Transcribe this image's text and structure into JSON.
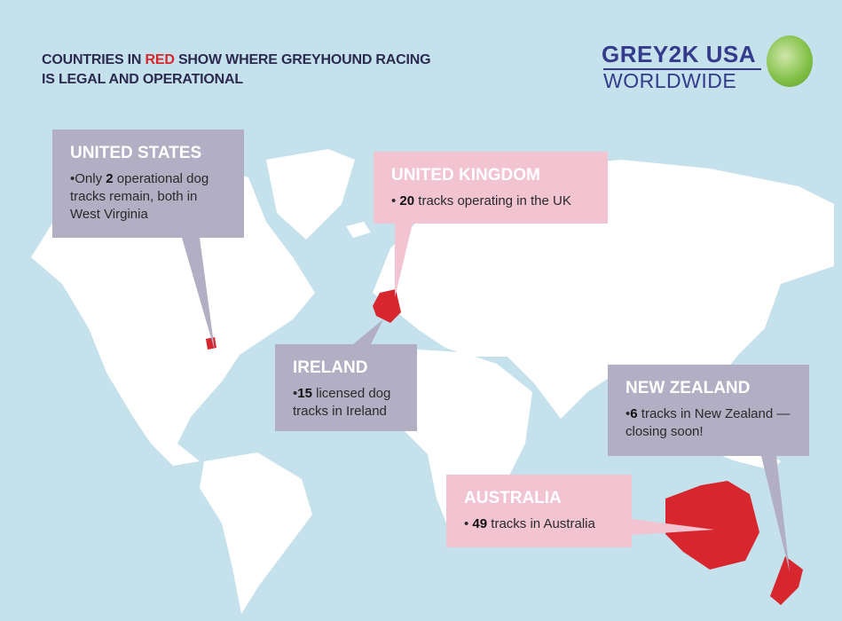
{
  "title": {
    "line_prefix": "COUNTRIES IN ",
    "highlight": "RED",
    "line_suffix": " SHOW WHERE GREYHOUND RACING",
    "line2": "IS LEGAL AND OPERATIONAL"
  },
  "logo": {
    "line1": "GREY2K USA",
    "line2": "WORLDWIDE"
  },
  "colors": {
    "ocean": "#c5e1ec",
    "land": "#ffffff",
    "racing_country": "#d7262e",
    "gray_box": "#b2aec3",
    "pink_box": "#f2c4d2",
    "title": "#2b2a4f"
  },
  "callouts": {
    "us": {
      "heading": "UNITED STATES",
      "pre": "Only ",
      "num": "2",
      "post": " operational dog tracks remain, both in West Virginia"
    },
    "uk": {
      "heading": "UNITED KINGDOM",
      "pre": "",
      "num": "20",
      "post": " tracks operating in the UK"
    },
    "ireland": {
      "heading": "IRELAND",
      "pre": "",
      "num": "15",
      "post": " licensed dog tracks in Ireland"
    },
    "nz": {
      "heading": "NEW ZEALAND",
      "pre": "",
      "num": "6",
      "post": " tracks in New Zealand —closing soon!"
    },
    "australia": {
      "heading": "AUSTRALIA",
      "pre": "",
      "num": "49",
      "post": " tracks in Australia"
    }
  }
}
